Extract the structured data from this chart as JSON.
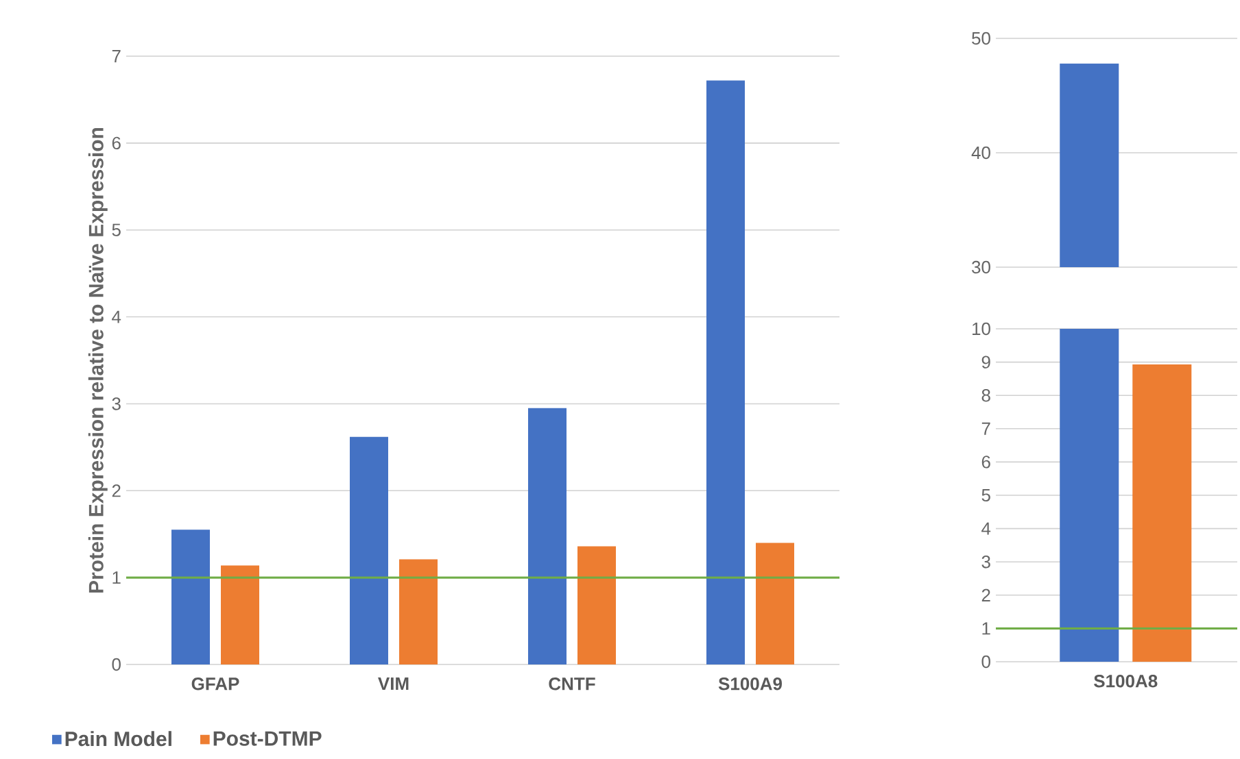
{
  "chart_data": [
    {
      "type": "bar",
      "ylabel": "Protein Expression relative to Naïve Expression",
      "categories": [
        "GFAP",
        "VIM",
        "CNTF",
        "S100A9"
      ],
      "series": [
        {
          "name": "Pain Model",
          "color": "#4472c4",
          "values": [
            1.55,
            2.62,
            2.95,
            6.72
          ]
        },
        {
          "name": "Post-DTMP",
          "color": "#ed7d31",
          "values": [
            1.14,
            1.21,
            1.36,
            1.4
          ]
        }
      ],
      "ylim": [
        0,
        7
      ],
      "yticks": [
        0,
        1,
        2,
        3,
        4,
        5,
        6,
        7
      ],
      "grid": "y",
      "legend": "bottom left",
      "ref_lines": [
        {
          "axis": "y",
          "value": 1,
          "color": "#70ad47"
        }
      ]
    },
    {
      "type": "bar",
      "categories": [
        null
      ],
      "series": [
        {
          "color": "#4472c4",
          "values": [
            47.8
          ]
        },
        {
          "color": "#ed7d31",
          "values": [
            null
          ]
        }
      ],
      "ylim": [
        30,
        50
      ],
      "yticks": [
        30,
        40,
        50
      ],
      "grid": "y",
      "tick_labels": "y"
    },
    {
      "type": "bar",
      "categories": [
        "S100A8"
      ],
      "series": [
        {
          "color": "#4472c4",
          "values": [
            10
          ]
        },
        {
          "color": "#ed7d31",
          "values": [
            8.93
          ]
        }
      ],
      "ylim": [
        0,
        10
      ],
      "yticks": [
        0,
        1,
        2,
        3,
        4,
        5,
        6,
        7,
        8,
        9,
        10
      ],
      "grid": "y",
      "ref_lines": [
        {
          "axis": "y",
          "value": 1,
          "color": "#70ad47"
        }
      ]
    }
  ]
}
